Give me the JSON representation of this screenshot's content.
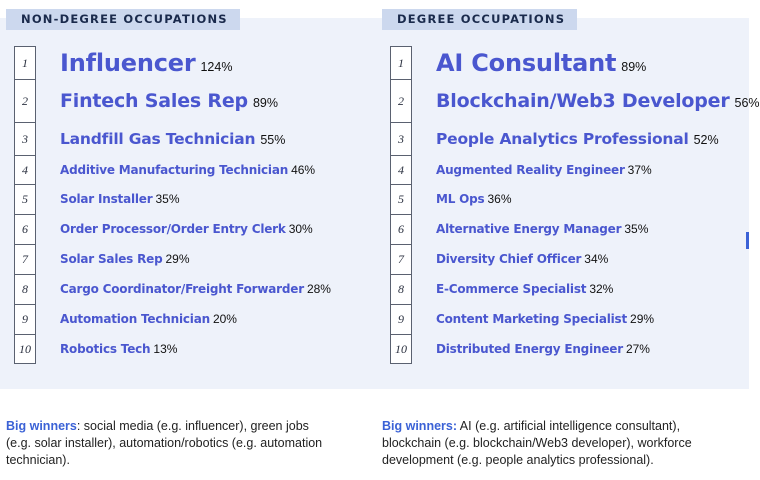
{
  "left": {
    "header": "NON-DEGREE OCCUPATIONS",
    "items": [
      {
        "rank": "1",
        "name": "Influencer",
        "pct": "124%"
      },
      {
        "rank": "2",
        "name": "Fintech Sales Rep",
        "pct": "89%"
      },
      {
        "rank": "3",
        "name": "Landfill Gas Technician",
        "pct": "55%"
      },
      {
        "rank": "4",
        "name": "Additive Manufacturing Technician",
        "pct": "46%"
      },
      {
        "rank": "5",
        "name": "Solar Installer",
        "pct": "35%"
      },
      {
        "rank": "6",
        "name": "Order Processor/Order Entry Clerk",
        "pct": "30%"
      },
      {
        "rank": "7",
        "name": "Solar Sales Rep",
        "pct": "29%"
      },
      {
        "rank": "8",
        "name": "Cargo Coordinator/Freight Forwarder",
        "pct": "28%"
      },
      {
        "rank": "9",
        "name": "Automation Technician",
        "pct": "20%"
      },
      {
        "rank": "10",
        "name": "Robotics Tech",
        "pct": "13%"
      }
    ],
    "summary_label": "Big winners",
    "summary_text": ": social media (e.g. influencer), green jobs (e.g. solar installer), automation/robotics (e.g. automation technician)."
  },
  "right": {
    "header": "DEGREE OCCUPATIONS",
    "items": [
      {
        "rank": "1",
        "name": "AI Consultant",
        "pct": "89%"
      },
      {
        "rank": "2",
        "name": "Blockchain/Web3 Developer",
        "pct": "56%"
      },
      {
        "rank": "3",
        "name": "People Analytics Professional",
        "pct": "52%"
      },
      {
        "rank": "4",
        "name": "Augmented Reality Engineer",
        "pct": "37%"
      },
      {
        "rank": "5",
        "name": "ML Ops",
        "pct": "36%"
      },
      {
        "rank": "6",
        "name": "Alternative Energy Manager",
        "pct": "35%"
      },
      {
        "rank": "7",
        "name": "Diversity Chief Officer",
        "pct": "34%"
      },
      {
        "rank": "8",
        "name": "E-Commerce Specialist",
        "pct": "32%"
      },
      {
        "rank": "9",
        "name": "Content Marketing Specialist",
        "pct": "29%"
      },
      {
        "rank": "10",
        "name": "Distributed Energy Engineer",
        "pct": "27%"
      }
    ],
    "summary_label": "Big winners:",
    "summary_text": " AI (e.g. artificial intelligence consultant), blockchain (e.g. blockchain/Web3 developer), workforce development (e.g. people analytics professional)."
  }
}
